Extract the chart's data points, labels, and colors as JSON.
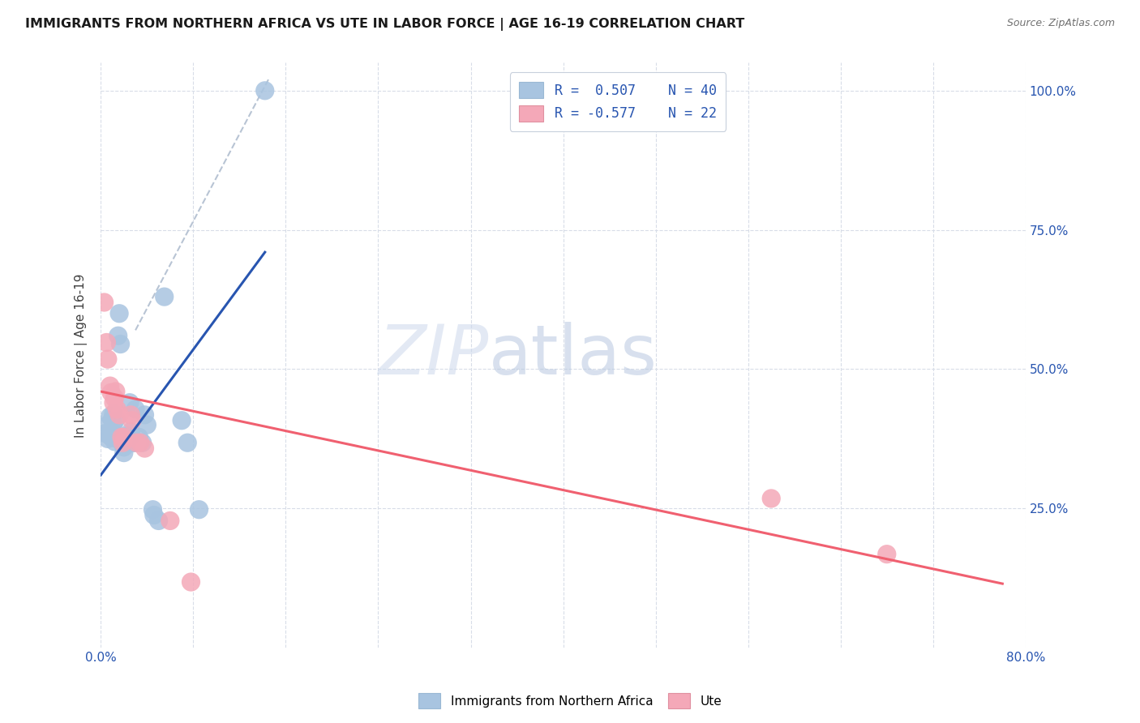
{
  "title": "IMMIGRANTS FROM NORTHERN AFRICA VS UTE IN LABOR FORCE | AGE 16-19 CORRELATION CHART",
  "source": "Source: ZipAtlas.com",
  "ylabel": "In Labor Force | Age 16-19",
  "watermark_zip": "ZIP",
  "watermark_atlas": "atlas",
  "xlim": [
    0.0,
    0.8
  ],
  "ylim": [
    0.0,
    1.05
  ],
  "xticks": [
    0.0,
    0.08,
    0.16,
    0.24,
    0.32,
    0.4,
    0.48,
    0.56,
    0.64,
    0.72,
    0.8
  ],
  "xticklabels_show": {
    "0.0": "0.0%",
    "0.80": "80.0%"
  },
  "ytick_positions": [
    0.25,
    0.5,
    0.75,
    1.0
  ],
  "ytick_labels": [
    "25.0%",
    "50.0%",
    "75.0%",
    "100.0%"
  ],
  "blue_color": "#a8c4e0",
  "pink_color": "#f4a8b8",
  "trend_blue": "#2855b0",
  "trend_pink": "#f06070",
  "trend_gray": "#b8c4d4",
  "blue_scatter": [
    [
      0.004,
      0.385
    ],
    [
      0.006,
      0.375
    ],
    [
      0.006,
      0.4
    ],
    [
      0.008,
      0.415
    ],
    [
      0.008,
      0.38
    ],
    [
      0.009,
      0.39
    ],
    [
      0.01,
      0.41
    ],
    [
      0.01,
      0.388
    ],
    [
      0.01,
      0.378
    ],
    [
      0.011,
      0.4
    ],
    [
      0.011,
      0.42
    ],
    [
      0.012,
      0.38
    ],
    [
      0.012,
      0.37
    ],
    [
      0.013,
      0.41
    ],
    [
      0.014,
      0.375
    ],
    [
      0.015,
      0.56
    ],
    [
      0.016,
      0.6
    ],
    [
      0.017,
      0.545
    ],
    [
      0.018,
      0.378
    ],
    [
      0.02,
      0.36
    ],
    [
      0.02,
      0.35
    ],
    [
      0.021,
      0.37
    ],
    [
      0.023,
      0.38
    ],
    [
      0.025,
      0.44
    ],
    [
      0.026,
      0.388
    ],
    [
      0.028,
      0.368
    ],
    [
      0.029,
      0.368
    ],
    [
      0.03,
      0.428
    ],
    [
      0.033,
      0.378
    ],
    [
      0.036,
      0.368
    ],
    [
      0.038,
      0.418
    ],
    [
      0.04,
      0.4
    ],
    [
      0.045,
      0.248
    ],
    [
      0.046,
      0.238
    ],
    [
      0.05,
      0.228
    ],
    [
      0.055,
      0.63
    ],
    [
      0.07,
      0.408
    ],
    [
      0.075,
      0.368
    ],
    [
      0.085,
      0.248
    ],
    [
      0.142,
      1.0
    ]
  ],
  "pink_scatter": [
    [
      0.003,
      0.62
    ],
    [
      0.005,
      0.548
    ],
    [
      0.006,
      0.518
    ],
    [
      0.008,
      0.47
    ],
    [
      0.009,
      0.458
    ],
    [
      0.011,
      0.44
    ],
    [
      0.012,
      0.448
    ],
    [
      0.013,
      0.46
    ],
    [
      0.014,
      0.428
    ],
    [
      0.016,
      0.418
    ],
    [
      0.018,
      0.378
    ],
    [
      0.019,
      0.368
    ],
    [
      0.02,
      0.378
    ],
    [
      0.026,
      0.418
    ],
    [
      0.027,
      0.408
    ],
    [
      0.031,
      0.368
    ],
    [
      0.034,
      0.368
    ],
    [
      0.038,
      0.358
    ],
    [
      0.06,
      0.228
    ],
    [
      0.078,
      0.118
    ],
    [
      0.58,
      0.268
    ],
    [
      0.68,
      0.168
    ]
  ],
  "blue_trend_x": [
    0.0,
    0.142
  ],
  "blue_trend_y": [
    0.31,
    0.71
  ],
  "pink_trend_x": [
    0.0,
    0.78
  ],
  "pink_trend_y": [
    0.46,
    0.115
  ],
  "gray_trend_x": [
    0.03,
    0.145
  ],
  "gray_trend_y": [
    0.57,
    1.02
  ]
}
